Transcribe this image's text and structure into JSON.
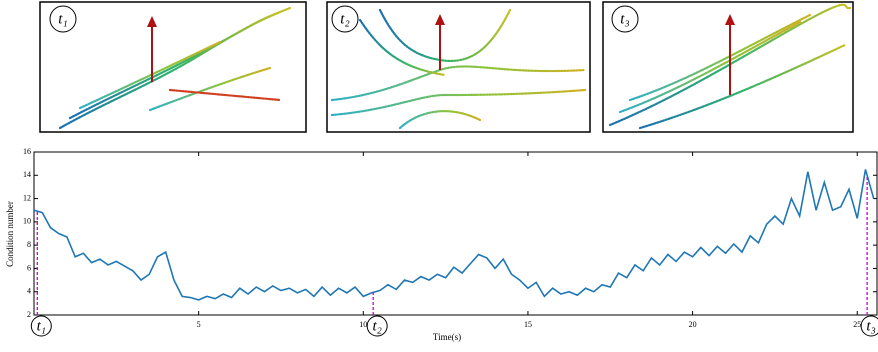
{
  "images": [
    {
      "label": "t₁"
    },
    {
      "label": "t₂"
    },
    {
      "label": "t₃"
    }
  ],
  "chart_data": {
    "type": "line",
    "xlabel": "Time(s)",
    "ylabel": "Condition number",
    "xlim": [
      0,
      25.6
    ],
    "ylim": [
      2,
      16
    ],
    "xticks": [
      5,
      10,
      15,
      20,
      25
    ],
    "yticks": [
      2,
      4,
      6,
      8,
      10,
      12,
      14,
      16
    ],
    "x": [
      0,
      0.25,
      0.5,
      0.75,
      1,
      1.25,
      1.5,
      1.75,
      2,
      2.25,
      2.5,
      2.75,
      3,
      3.25,
      3.5,
      3.75,
      4,
      4.25,
      4.5,
      4.75,
      5,
      5.25,
      5.5,
      5.75,
      6,
      6.25,
      6.5,
      6.75,
      7,
      7.25,
      7.5,
      7.75,
      8,
      8.25,
      8.5,
      8.75,
      9,
      9.25,
      9.5,
      9.75,
      10,
      10.25,
      10.5,
      10.75,
      11,
      11.25,
      11.5,
      11.75,
      12,
      12.25,
      12.5,
      12.75,
      13,
      13.25,
      13.5,
      13.75,
      14,
      14.25,
      14.5,
      14.75,
      15,
      15.25,
      15.5,
      15.75,
      16,
      16.25,
      16.5,
      16.75,
      17,
      17.25,
      17.5,
      17.75,
      18,
      18.25,
      18.5,
      18.75,
      19,
      19.25,
      19.5,
      19.75,
      20,
      20.25,
      20.5,
      20.75,
      21,
      21.25,
      21.5,
      21.75,
      22,
      22.25,
      22.5,
      22.75,
      23,
      23.25,
      23.5,
      23.75,
      24,
      24.25,
      24.5,
      24.75,
      25,
      25.25,
      25.5
    ],
    "series": [
      {
        "name": "Condition number",
        "color": "#1f77b4",
        "values": [
          11,
          10.8,
          9.5,
          9,
          8.7,
          7,
          7.3,
          6.5,
          6.8,
          6.3,
          6.6,
          6.2,
          5.8,
          5.0,
          5.5,
          7.0,
          7.4,
          5.0,
          3.6,
          3.5,
          3.3,
          3.6,
          3.4,
          3.8,
          3.5,
          4.3,
          3.8,
          4.4,
          4.0,
          4.5,
          4.1,
          4.3,
          3.9,
          4.2,
          3.6,
          4.4,
          3.7,
          4.3,
          3.9,
          4.4,
          3.6,
          3.9,
          4.1,
          4.6,
          4.2,
          5.0,
          4.8,
          5.3,
          5.0,
          5.5,
          5.2,
          6.1,
          5.6,
          6.4,
          7.2,
          6.9,
          6.0,
          6.8,
          5.5,
          5.0,
          4.3,
          4.8,
          3.6,
          4.3,
          3.8,
          4.0,
          3.7,
          4.3,
          4.0,
          4.6,
          4.4,
          5.6,
          5.2,
          6.3,
          5.8,
          6.9,
          6.3,
          7.2,
          6.6,
          7.4,
          7.0,
          7.8,
          7.1,
          7.9,
          7.3,
          8.1,
          7.4,
          8.8,
          8.2,
          9.8,
          10.5,
          9.8,
          12.0,
          10.5,
          14.3,
          11.0,
          13.4,
          11.0,
          11.3,
          12.8,
          10.3,
          14.5,
          12.0
        ]
      }
    ],
    "markers": [
      {
        "label": "t₁",
        "x": 0.1
      },
      {
        "label": "t₂",
        "x": 10.3
      },
      {
        "label": "t₃",
        "x": 25.3
      }
    ],
    "marker_color": "#cc00cc"
  }
}
